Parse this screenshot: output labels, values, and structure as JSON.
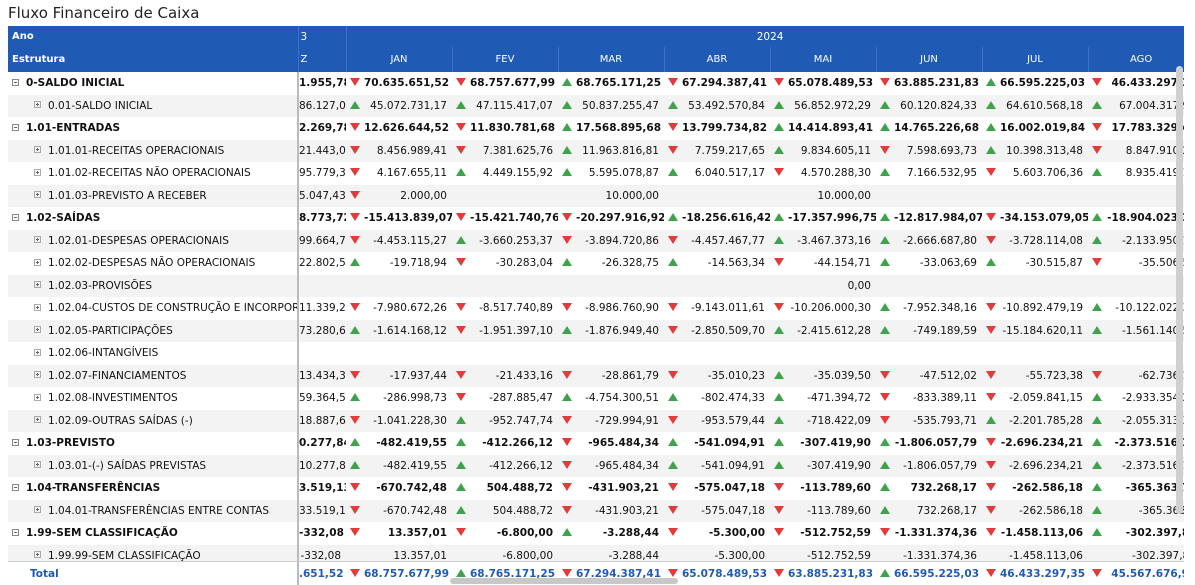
{
  "title": "Fluxo Financeiro de Caixa",
  "header": {
    "row1_label": "Ano",
    "row1_partial": "3",
    "year": "2024",
    "row2_label": "Estrutura",
    "row2_partial": "Z",
    "months": [
      "JAN",
      "FEV",
      "MAR",
      "ABR",
      "MAI",
      "JUN",
      "JUL",
      "AGO"
    ]
  },
  "rows": [
    {
      "label": "0-SALDO INICIAL",
      "level": 0,
      "prev": "1.955,78",
      "cells": [
        [
          "down",
          "70.635.651,52"
        ],
        [
          "down",
          "68.757.677,99"
        ],
        [
          "up",
          "68.765.171,25"
        ],
        [
          "down",
          "67.294.387,41"
        ],
        [
          "down",
          "65.078.489,53"
        ],
        [
          "down",
          "63.885.231,83"
        ],
        [
          "up",
          "66.595.225,03"
        ],
        [
          "down",
          "46.433.297,3"
        ]
      ]
    },
    {
      "label": "0.01-SALDO INICIAL",
      "level": 1,
      "prev": "86.127,06",
      "cells": [
        [
          "up",
          "45.072.731,17"
        ],
        [
          "up",
          "47.115.417,07"
        ],
        [
          "up",
          "50.837.255,47"
        ],
        [
          "up",
          "53.492.570,84"
        ],
        [
          "up",
          "56.852.972,29"
        ],
        [
          "up",
          "60.120.824,33"
        ],
        [
          "up",
          "64.610.568,18"
        ],
        [
          "up",
          "67.004.317,9"
        ]
      ]
    },
    {
      "label": "1.01-ENTRADAS",
      "level": 0,
      "prev": "2.269,78",
      "cells": [
        [
          "down",
          "12.626.644,52"
        ],
        [
          "down",
          "11.830.781,68"
        ],
        [
          "up",
          "17.568.895,68"
        ],
        [
          "down",
          "13.799.734,82"
        ],
        [
          "up",
          "14.414.893,41"
        ],
        [
          "up",
          "14.765.226,68"
        ],
        [
          "up",
          "16.002.019,84"
        ],
        [
          "down",
          "17.783.329,4"
        ]
      ]
    },
    {
      "label": "1.01.01-RECEITAS OPERACIONAIS",
      "level": 1,
      "prev": "21.443,02",
      "cells": [
        [
          "down",
          "8.456.989,41"
        ],
        [
          "down",
          "7.381.625,76"
        ],
        [
          "up",
          "11.963.816,81"
        ],
        [
          "down",
          "7.759.217,65"
        ],
        [
          "up",
          "9.834.605,11"
        ],
        [
          "down",
          "7.598.693,73"
        ],
        [
          "up",
          "10.398.313,48"
        ],
        [
          "down",
          "8.847.910,2"
        ]
      ]
    },
    {
      "label": "1.01.02-RECEITAS NÃO OPERACIONAIS",
      "level": 1,
      "prev": "95.779,33",
      "cells": [
        [
          "down",
          "4.167.655,11"
        ],
        [
          "up",
          "4.449.155,92"
        ],
        [
          "up",
          "5.595.078,87"
        ],
        [
          "up",
          "6.040.517,17"
        ],
        [
          "down",
          "4.570.288,30"
        ],
        [
          "up",
          "7.166.532,95"
        ],
        [
          "down",
          "5.603.706,36"
        ],
        [
          "up",
          "8.935.419,1"
        ]
      ]
    },
    {
      "label": "1.01.03-PREVISTO A RECEBER",
      "level": 1,
      "prev": "5.047,43",
      "cells": [
        [
          "down",
          "2.000,00"
        ],
        [
          "",
          ""
        ],
        [
          "",
          "10.000,00"
        ],
        [
          "",
          ""
        ],
        [
          "",
          "10.000,00"
        ],
        [
          "",
          ""
        ],
        [
          "",
          ""
        ],
        [
          "",
          ""
        ]
      ]
    },
    {
      "label": "1.02-SAÍDAS",
      "level": 0,
      "prev": "8.773,72",
      "cells": [
        [
          "down",
          "-15.413.839,07"
        ],
        [
          "down",
          "-15.421.740,76"
        ],
        [
          "down",
          "-20.297.916,92"
        ],
        [
          "up",
          "-18.256.616,42"
        ],
        [
          "up",
          "-17.357.996,75"
        ],
        [
          "up",
          "-12.817.984,07"
        ],
        [
          "down",
          "-34.153.079,05"
        ],
        [
          "up",
          "-18.904.023,3"
        ]
      ]
    },
    {
      "label": "1.02.01-DESPESAS OPERACIONAIS",
      "level": 1,
      "prev": "99.664,70",
      "cells": [
        [
          "down",
          "-4.453.115,27"
        ],
        [
          "up",
          "-3.660.253,37"
        ],
        [
          "down",
          "-3.894.720,86"
        ],
        [
          "down",
          "-4.457.467,77"
        ],
        [
          "up",
          "-3.467.373,16"
        ],
        [
          "up",
          "-2.666.687,80"
        ],
        [
          "down",
          "-3.728.114,08"
        ],
        [
          "up",
          "-2.133.950,1"
        ]
      ]
    },
    {
      "label": "1.02.02-DESPESAS NÃO OPERACIONAIS",
      "level": 1,
      "prev": "22.802,53",
      "cells": [
        [
          "up",
          "-19.718,94"
        ],
        [
          "down",
          "-30.283,04"
        ],
        [
          "up",
          "-26.328,75"
        ],
        [
          "up",
          "-14.563,34"
        ],
        [
          "down",
          "-44.154,71"
        ],
        [
          "up",
          "-33.063,69"
        ],
        [
          "up",
          "-30.515,87"
        ],
        [
          "down",
          "-35.506,5"
        ]
      ]
    },
    {
      "label": "1.02.03-PROVISÕES",
      "level": 1,
      "prev": "",
      "cells": [
        [
          "",
          ""
        ],
        [
          "",
          ""
        ],
        [
          "",
          ""
        ],
        [
          "",
          ""
        ],
        [
          "",
          "0,00"
        ],
        [
          "",
          ""
        ],
        [
          "",
          ""
        ],
        [
          "",
          ""
        ]
      ]
    },
    {
      "label": "1.02.04-CUSTOS DE CONSTRUÇÃO E INCORPORAÇÃO",
      "level": 1,
      "prev": "11.339,24",
      "cells": [
        [
          "down",
          "-7.980.672,26"
        ],
        [
          "down",
          "-8.517.740,89"
        ],
        [
          "down",
          "-8.986.760,90"
        ],
        [
          "down",
          "-9.143.011,61"
        ],
        [
          "down",
          "-10.206.000,30"
        ],
        [
          "up",
          "-7.952.348,16"
        ],
        [
          "down",
          "-10.892.479,19"
        ],
        [
          "up",
          "-10.122.022,3"
        ]
      ]
    },
    {
      "label": "1.02.05-PARTICIPAÇÕES",
      "level": 1,
      "prev": "73.280,68",
      "cells": [
        [
          "up",
          "-1.614.168,12"
        ],
        [
          "down",
          "-1.951.397,10"
        ],
        [
          "up",
          "-1.876.949,40"
        ],
        [
          "down",
          "-2.850.509,70"
        ],
        [
          "up",
          "-2.415.612,28"
        ],
        [
          "up",
          "-749.189,59"
        ],
        [
          "down",
          "-15.184.620,11"
        ],
        [
          "up",
          "-1.561.140,5"
        ]
      ]
    },
    {
      "label": "1.02.06-INTANGÍVEIS",
      "level": 1,
      "prev": "",
      "cells": [
        [
          "",
          ""
        ],
        [
          "",
          ""
        ],
        [
          "",
          ""
        ],
        [
          "",
          ""
        ],
        [
          "",
          ""
        ],
        [
          "",
          ""
        ],
        [
          "",
          ""
        ],
        [
          "",
          ""
        ]
      ]
    },
    {
      "label": "1.02.07-FINANCIAMENTOS",
      "level": 1,
      "prev": "13.434,34",
      "cells": [
        [
          "down",
          "-17.937,44"
        ],
        [
          "down",
          "-21.433,16"
        ],
        [
          "down",
          "-28.861,79"
        ],
        [
          "down",
          "-35.010,23"
        ],
        [
          "up",
          "-35.039,50"
        ],
        [
          "down",
          "-47.512,02"
        ],
        [
          "down",
          "-55.723,38"
        ],
        [
          "down",
          "-62.736,1"
        ]
      ]
    },
    {
      "label": "1.02.08-INVESTIMENTOS",
      "level": 1,
      "prev": "59.364,59",
      "cells": [
        [
          "up",
          "-286.998,73"
        ],
        [
          "down",
          "-287.885,47"
        ],
        [
          "up",
          "-4.754.300,51"
        ],
        [
          "up",
          "-802.474,33"
        ],
        [
          "up",
          "-471.394,72"
        ],
        [
          "down",
          "-833.389,11"
        ],
        [
          "down",
          "-2.059.841,15"
        ],
        [
          "up",
          "-2.933.354,2"
        ]
      ]
    },
    {
      "label": "1.02.09-OUTRAS SAÍDAS (-)",
      "level": 1,
      "prev": "18.887,64",
      "cells": [
        [
          "down",
          "-1.041.228,30"
        ],
        [
          "up",
          "-952.747,74"
        ],
        [
          "down",
          "-729.994,91"
        ],
        [
          "down",
          "-953.579,44"
        ],
        [
          "up",
          "-718.422,09"
        ],
        [
          "down",
          "-535.793,71"
        ],
        [
          "up",
          "-2.201.785,28"
        ],
        [
          "up",
          "-2.055.313,3"
        ]
      ]
    },
    {
      "label": "1.03-PREVISTO",
      "level": 0,
      "prev": "0.277,84",
      "cells": [
        [
          "up",
          "-482.419,55"
        ],
        [
          "up",
          "-412.266,12"
        ],
        [
          "down",
          "-965.484,34"
        ],
        [
          "up",
          "-541.094,91"
        ],
        [
          "up",
          "-307.419,90"
        ],
        [
          "up",
          "-1.806.057,79"
        ],
        [
          "down",
          "-2.696.234,21"
        ],
        [
          "up",
          "-2.373.516,1"
        ]
      ]
    },
    {
      "label": "1.03.01-(-) SAÍDAS PREVISTAS",
      "level": 1,
      "prev": "10.277,84",
      "cells": [
        [
          "up",
          "-482.419,55"
        ],
        [
          "up",
          "-412.266,12"
        ],
        [
          "down",
          "-965.484,34"
        ],
        [
          "up",
          "-541.094,91"
        ],
        [
          "up",
          "-307.419,90"
        ],
        [
          "up",
          "-1.806.057,79"
        ],
        [
          "down",
          "-2.696.234,21"
        ],
        [
          "up",
          "-2.373.516,1"
        ]
      ]
    },
    {
      "label": "1.04-TRANSFERÊNCIAS",
      "level": 0,
      "prev": "3.519,13",
      "cells": [
        [
          "down",
          "-670.742,48"
        ],
        [
          "up",
          "504.488,72"
        ],
        [
          "down",
          "-431.903,21"
        ],
        [
          "down",
          "-575.047,18"
        ],
        [
          "down",
          "-113.789,60"
        ],
        [
          "up",
          "732.268,17"
        ],
        [
          "down",
          "-262.586,18"
        ],
        [
          "up",
          "-365.363,7"
        ]
      ]
    },
    {
      "label": "1.04.01-TRANSFERÊNCIAS ENTRE CONTAS",
      "level": 1,
      "prev": "33.519,13",
      "cells": [
        [
          "down",
          "-670.742,48"
        ],
        [
          "up",
          "504.488,72"
        ],
        [
          "down",
          "-431.903,21"
        ],
        [
          "down",
          "-575.047,18"
        ],
        [
          "down",
          "-113.789,60"
        ],
        [
          "up",
          "732.268,17"
        ],
        [
          "down",
          "-262.586,18"
        ],
        [
          "up",
          "-365.363,"
        ]
      ]
    },
    {
      "label": "1.99-SEM CLASSIFICAÇÃO",
      "level": 0,
      "prev": "-332,08",
      "cells": [
        [
          "down",
          "13.357,01"
        ],
        [
          "down",
          "-6.800,00"
        ],
        [
          "up",
          "-3.288,44"
        ],
        [
          "down",
          "-5.300,00"
        ],
        [
          "down",
          "-512.752,59"
        ],
        [
          "down",
          "-1.331.374,36"
        ],
        [
          "down",
          "-1.458.113,06"
        ],
        [
          "up",
          "-302.397,8"
        ]
      ]
    },
    {
      "label": "1.99.99-SEM CLASSIFICAÇÃO",
      "level": 1,
      "prev": "-332,08",
      "cells": [
        [
          "",
          "13.357,01"
        ],
        [
          "",
          "-6.800,00"
        ],
        [
          "",
          "-3.288,44"
        ],
        [
          "",
          "-5.300,00"
        ],
        [
          "",
          "-512.752,59"
        ],
        [
          "",
          "-1.331.374,36"
        ],
        [
          "",
          "-1.458.113,06"
        ],
        [
          "",
          "-302.397,8"
        ]
      ]
    }
  ],
  "total": {
    "label": "Total",
    "prev": ".651,52",
    "cells": [
      [
        "down",
        "68.757.677,99"
      ],
      [
        "up",
        "68.765.171,25"
      ],
      [
        "down",
        "67.294.387,41"
      ],
      [
        "down",
        "65.078.489,53"
      ],
      [
        "down",
        "63.885.231,83"
      ],
      [
        "up",
        "66.595.225,03"
      ],
      [
        "down",
        "46.433.297,35"
      ],
      [
        "down",
        "45.567.676,9"
      ]
    ]
  },
  "colors": {
    "header_bg": "#1f5bb5",
    "up": "#3fa34d",
    "down": "#e13b3b",
    "total_text": "#1f5bb5"
  }
}
